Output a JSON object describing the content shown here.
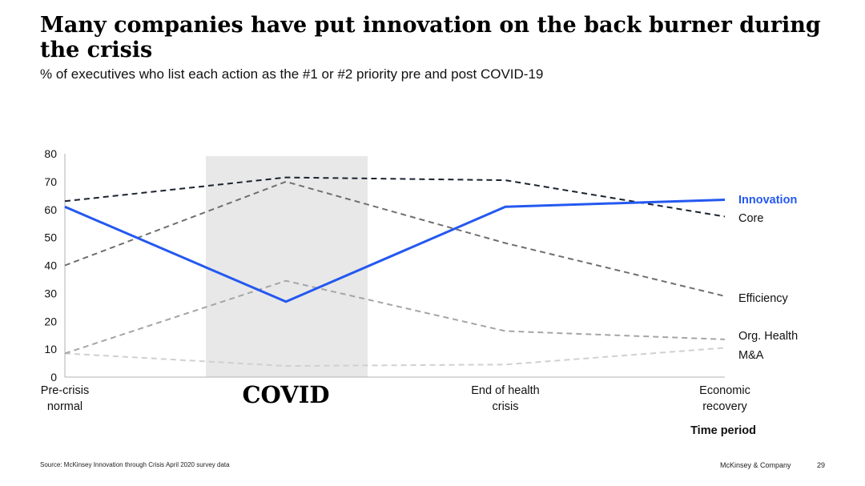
{
  "slide": {
    "title": "Many companies have put innovation on the back burner during the crisis",
    "subtitle": "% of executives who list each action as the #1 or #2 priority pre and post COVID-19"
  },
  "footer": {
    "source": "Source: McKinsey Innovation through Crisis April 2020 survey data",
    "brand": "McKinsey & Company",
    "page": "29"
  },
  "chart_data": {
    "type": "line",
    "categories": [
      [
        "Pre-crisis",
        "normal"
      ],
      [
        "COVID"
      ],
      [
        "End of health",
        "crisis"
      ],
      [
        "Economic",
        "recovery"
      ]
    ],
    "xlabel": "Time period",
    "ylabel": "",
    "ylim": [
      0,
      80
    ],
    "yticks": [
      0,
      10,
      20,
      30,
      40,
      50,
      60,
      70,
      80
    ],
    "highlight": {
      "category_index": 1,
      "color": "#e8e8e8"
    },
    "grid": false,
    "legend": "end-of-line labels",
    "series": [
      {
        "name": "Innovation",
        "values": [
          61,
          27,
          61,
          63.5
        ],
        "color": "#2458f0",
        "style": "solid",
        "label_color": "#2458f0",
        "label_bold": true
      },
      {
        "name": "Core",
        "values": [
          63,
          71.5,
          70.5,
          57.5
        ],
        "color": "#1b2230",
        "style": "dashed",
        "label_color": "#111111",
        "label_bold": false
      },
      {
        "name": "Efficiency",
        "values": [
          40,
          70,
          48,
          29
        ],
        "color": "#6f6f6f",
        "style": "dashed",
        "label_color": "#111111",
        "label_bold": false
      },
      {
        "name": "Org. Health",
        "values": [
          8.5,
          34.5,
          16.5,
          13.5
        ],
        "color": "#a5a5a5",
        "style": "dashed",
        "label_color": "#111111",
        "label_bold": false
      },
      {
        "name": "M&A",
        "values": [
          8.5,
          4,
          4.5,
          10.5
        ],
        "color": "#d0d0d0",
        "style": "dashed",
        "label_color": "#111111",
        "label_bold": false
      }
    ]
  }
}
